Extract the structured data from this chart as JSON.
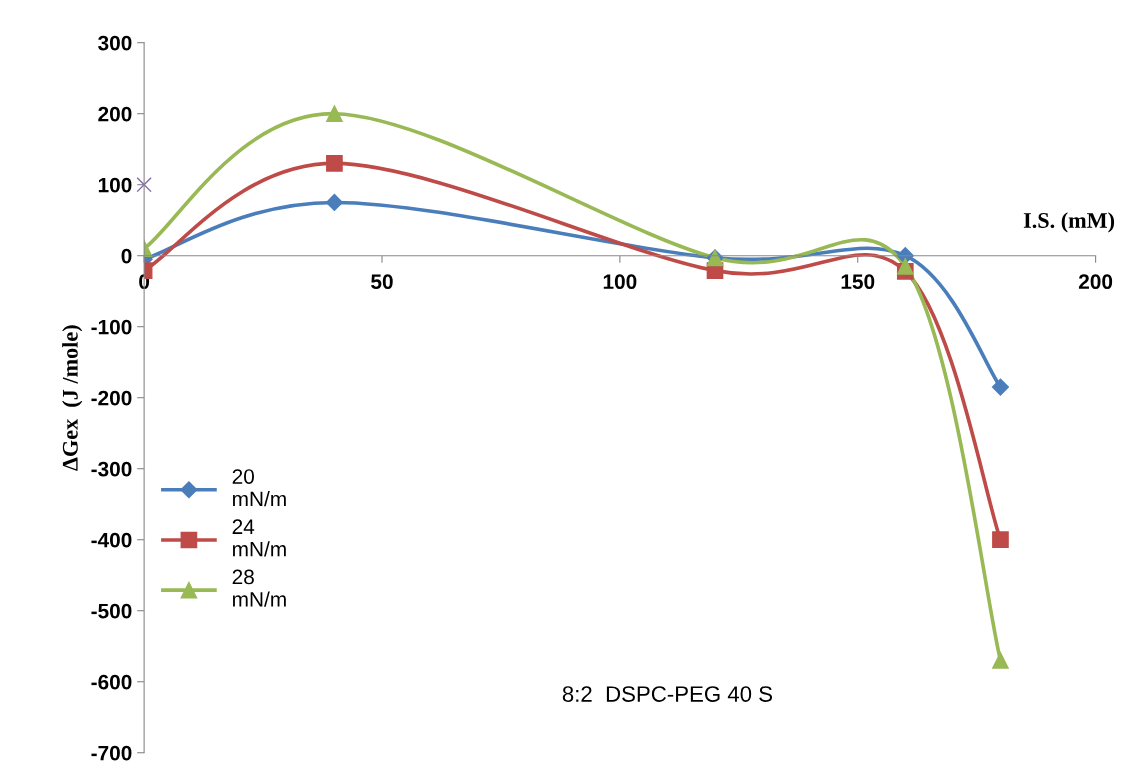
{
  "chart_data": {
    "type": "line",
    "title": "8:2  DSPC-PEG 40 S",
    "xlabel": "I.S. (mM)",
    "ylabel": "ΔGex  (J /mole)",
    "xlim": [
      0,
      200
    ],
    "xticks": [
      0,
      50,
      100,
      150,
      200
    ],
    "ylim": [
      -700,
      300
    ],
    "yticks": [
      -700,
      -600,
      -500,
      -400,
      -300,
      -200,
      -100,
      0,
      100,
      200,
      300
    ],
    "grid": false,
    "legend": "left",
    "line_style": "solid",
    "series": [
      {
        "name": "20 mN/m",
        "color": "#4a7ebb",
        "marker": "diamond",
        "x": [
          0,
          40,
          120,
          160,
          180
        ],
        "values": [
          -5,
          75,
          -3,
          0,
          -185
        ]
      },
      {
        "name": "24 mN/m",
        "color": "#be4b48",
        "marker": "square",
        "x": [
          0,
          40,
          120,
          160,
          180
        ],
        "values": [
          -21,
          130,
          -21,
          -22,
          -400
        ]
      },
      {
        "name": "28 mN/m",
        "color": "#98b954",
        "marker": "triangle",
        "x": [
          0,
          40,
          120,
          160,
          180
        ],
        "values": [
          10,
          200,
          -3,
          -15,
          -570
        ]
      },
      {
        "type": "scatter",
        "color": "#8064a2",
        "marker": "cross",
        "x": [
          0
        ],
        "values": [
          100
        ]
      }
    ]
  }
}
